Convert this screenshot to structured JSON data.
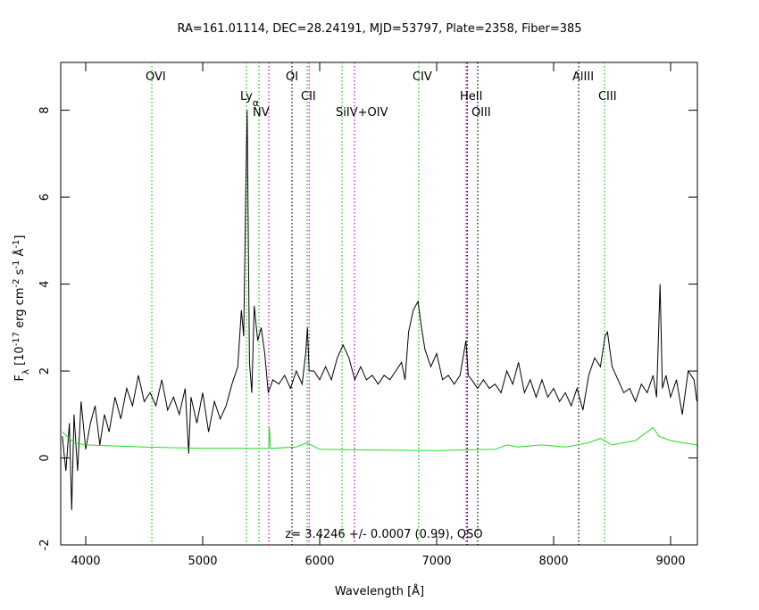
{
  "chart_data": {
    "type": "line",
    "title": "RA=161.01114, DEC=28.24191, MJD=53797, Plate=2358, Fiber=385",
    "xlabel": "Wavelength [Å]",
    "ylabel": [
      "F",
      "λ",
      " [10",
      "-17",
      " erg cm",
      "-2",
      " s",
      "-1",
      " Å",
      "-1",
      "]"
    ],
    "annotation": "z= 3.4246 +/- 0.0007 (0.99), QSO",
    "xlim": [
      3786,
      9229
    ],
    "ylim": [
      -2.0,
      9.1
    ],
    "xticks": [
      4000,
      5000,
      6000,
      7000,
      8000,
      9000
    ],
    "yticks": [
      -2,
      0,
      2,
      4,
      6,
      8
    ],
    "series": [
      {
        "color": "#000000",
        "x": [
          3800,
          3830,
          3860,
          3880,
          3900,
          3930,
          3960,
          4000,
          4040,
          4080,
          4120,
          4160,
          4200,
          4250,
          4300,
          4350,
          4400,
          4450,
          4500,
          4550,
          4600,
          4650,
          4700,
          4750,
          4800,
          4850,
          4880,
          4900,
          4950,
          5000,
          5050,
          5100,
          5150,
          5200,
          5250,
          5300,
          5330,
          5350,
          5370,
          5380,
          5390,
          5400,
          5420,
          5440,
          5470,
          5500,
          5530,
          5560,
          5600,
          5650,
          5700,
          5750,
          5800,
          5850,
          5880,
          5895,
          5910,
          5950,
          6000,
          6050,
          6100,
          6150,
          6200,
          6250,
          6300,
          6350,
          6400,
          6450,
          6500,
          6550,
          6600,
          6650,
          6700,
          6730,
          6760,
          6800,
          6840,
          6870,
          6900,
          6950,
          7000,
          7050,
          7100,
          7150,
          7200,
          7250,
          7270,
          7300,
          7350,
          7400,
          7450,
          7500,
          7550,
          7600,
          7650,
          7700,
          7750,
          7800,
          7850,
          7900,
          7950,
          8000,
          8050,
          8100,
          8150,
          8200,
          8250,
          8300,
          8350,
          8400,
          8440,
          8460,
          8500,
          8550,
          8600,
          8650,
          8700,
          8750,
          8800,
          8850,
          8880,
          8910,
          8930,
          8960,
          9000,
          9050,
          9100,
          9150,
          9200,
          9225
        ],
        "values": [
          0.5,
          -0.3,
          0.8,
          -1.2,
          1.0,
          -0.3,
          1.3,
          0.2,
          0.8,
          1.2,
          0.3,
          1.0,
          0.6,
          1.4,
          0.9,
          1.6,
          1.2,
          1.9,
          1.3,
          1.5,
          1.2,
          1.8,
          1.1,
          1.4,
          1.0,
          1.6,
          0.1,
          1.4,
          0.8,
          1.5,
          0.6,
          1.3,
          0.9,
          1.2,
          1.7,
          2.1,
          3.4,
          2.8,
          6.5,
          8.0,
          5.0,
          2.2,
          1.5,
          3.5,
          2.7,
          3.0,
          2.4,
          1.5,
          1.8,
          1.7,
          1.9,
          1.6,
          2.0,
          1.7,
          2.4,
          3.0,
          2.0,
          2.0,
          1.8,
          2.1,
          1.8,
          2.3,
          2.6,
          2.3,
          1.8,
          2.1,
          1.8,
          1.9,
          1.7,
          1.9,
          1.8,
          2.0,
          2.2,
          1.8,
          2.9,
          3.4,
          3.6,
          3.0,
          2.5,
          2.1,
          2.4,
          1.8,
          1.9,
          1.7,
          1.9,
          2.7,
          1.9,
          1.8,
          1.6,
          1.8,
          1.6,
          1.7,
          1.5,
          2.0,
          1.7,
          2.2,
          1.5,
          1.8,
          1.4,
          1.8,
          1.4,
          1.6,
          1.3,
          1.5,
          1.2,
          1.6,
          1.1,
          1.9,
          2.3,
          2.1,
          2.8,
          2.9,
          2.1,
          1.8,
          1.5,
          1.6,
          1.3,
          1.7,
          1.5,
          1.9,
          1.4,
          4.0,
          1.6,
          1.9,
          1.4,
          1.8,
          1.0,
          2.0,
          1.8,
          1.3
        ]
      },
      {
        "color": "#22dd22",
        "x": [
          3800,
          3900,
          4000,
          4500,
          5000,
          5300,
          5400,
          5565,
          5570,
          5580,
          5800,
          5890,
          6000,
          6500,
          7000,
          7500,
          7600,
          7700,
          7900,
          8100,
          8300,
          8400,
          8500,
          8700,
          8800,
          8850,
          8900,
          9000,
          9100,
          9225
        ],
        "values": [
          0.6,
          0.35,
          0.3,
          0.25,
          0.22,
          0.22,
          0.22,
          0.22,
          0.7,
          0.22,
          0.25,
          0.35,
          0.2,
          0.18,
          0.17,
          0.2,
          0.3,
          0.25,
          0.3,
          0.25,
          0.35,
          0.45,
          0.3,
          0.4,
          0.6,
          0.7,
          0.5,
          0.4,
          0.35,
          0.3
        ]
      }
    ],
    "lines": [
      {
        "label": "OVI",
        "x": 4565,
        "color": "#00cc00"
      },
      {
        "label": "Ly",
        "sub": "α",
        "x": 5374,
        "color": "#00cc00"
      },
      {
        "label": "NV",
        "x": 5481,
        "color": "#00cc00"
      },
      {
        "label": null,
        "x": 5565,
        "color": "#cc00cc"
      },
      {
        "label": "OI",
        "x": 5763,
        "color": "#000000"
      },
      {
        "label": "CII",
        "x": 5893,
        "color": "#00cc00"
      },
      {
        "label": null,
        "x": 5910,
        "color": "#cc00cc"
      },
      {
        "label": "SiIV+OIV",
        "x": 6191,
        "color": "#00cc00"
      },
      {
        "label": null,
        "x": 6298,
        "color": "#cc00cc"
      },
      {
        "label": "CIV",
        "x": 6847,
        "color": "#00cc00"
      },
      {
        "label": "HeII",
        "x": 7252,
        "color": "#cc00cc"
      },
      {
        "label": null,
        "x": 7262,
        "color": "#000000"
      },
      {
        "label": "OIII",
        "x": 7351,
        "color": "#000000"
      },
      {
        "label": "AlIII",
        "x": 8214,
        "color": "#000000"
      },
      {
        "label": "CIII",
        "x": 8435,
        "color": "#00cc00"
      }
    ]
  }
}
